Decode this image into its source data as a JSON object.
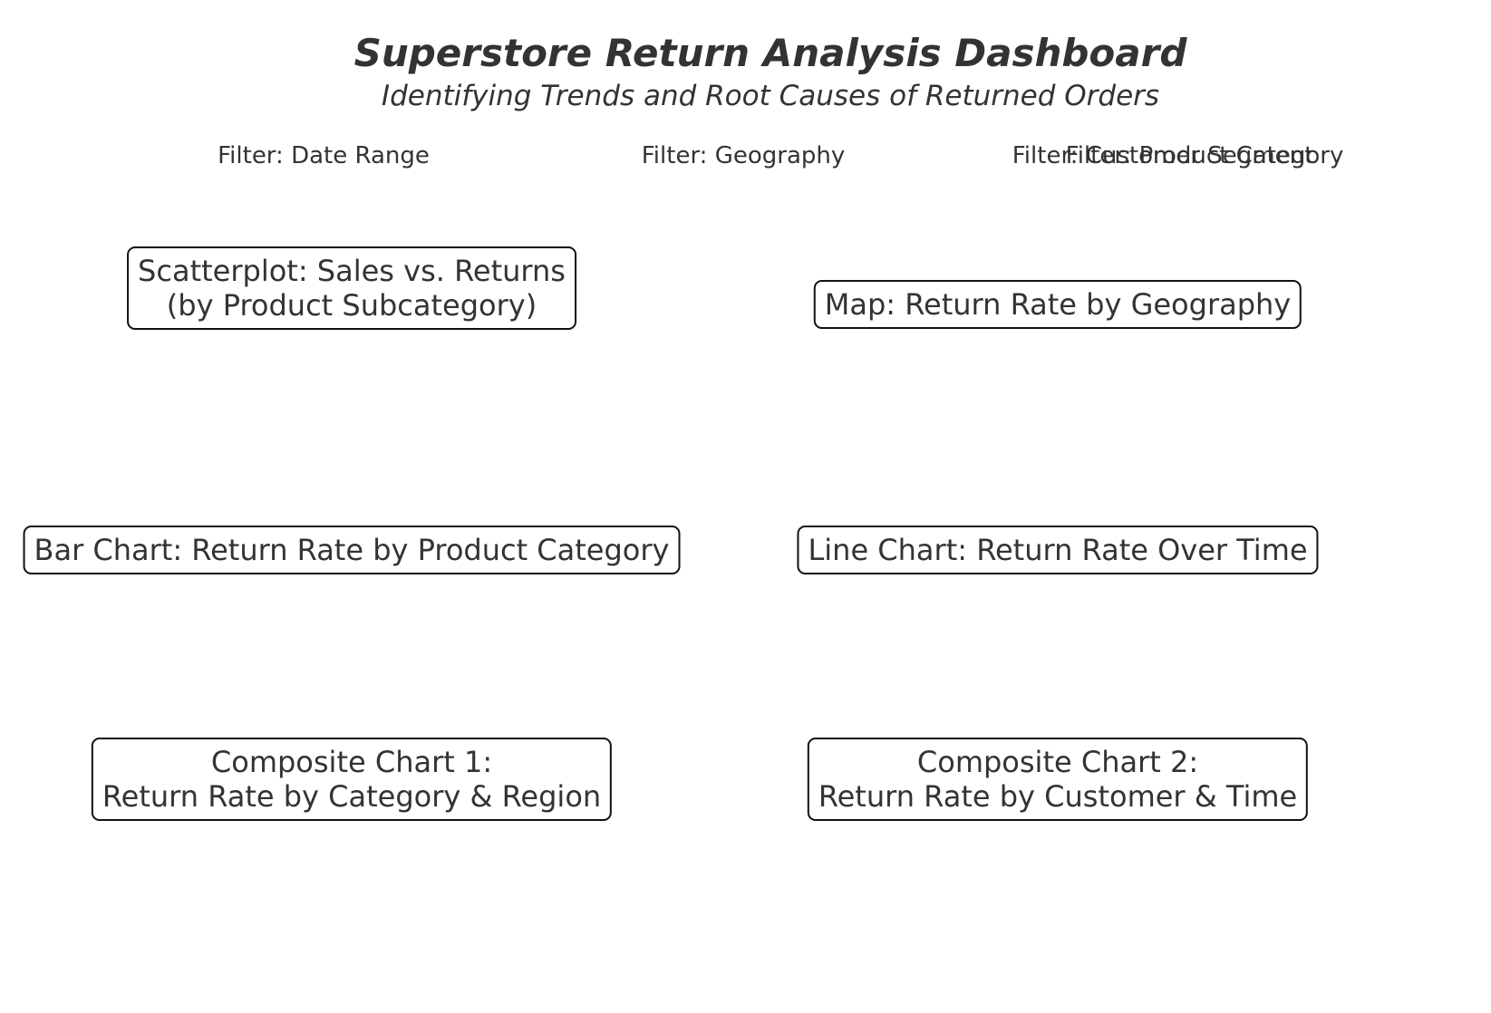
{
  "header": {
    "title": "Superstore Return Analysis Dashboard",
    "subtitle": "Identifying Trends and Root Causes of Returned Orders"
  },
  "filters": [
    "Filter: Date Range",
    "Filter: Geography",
    "Filter: Customer Segment",
    "Filter: Product Category"
  ],
  "panels": {
    "scatterplot": {
      "line1": "Scatterplot: Sales vs. Returns",
      "line2": "(by Product Subcategory)"
    },
    "map": {
      "line1": "Map: Return Rate by Geography"
    },
    "bar": {
      "line1": "Bar Chart: Return Rate by Product Category"
    },
    "line": {
      "line1": "Line Chart: Return Rate Over Time"
    },
    "composite1": {
      "line1": "Composite Chart 1:",
      "line2": "Return Rate by Category & Region"
    },
    "composite2": {
      "line1": "Composite Chart 2:",
      "line2": "Return Rate by Customer & Time"
    }
  }
}
